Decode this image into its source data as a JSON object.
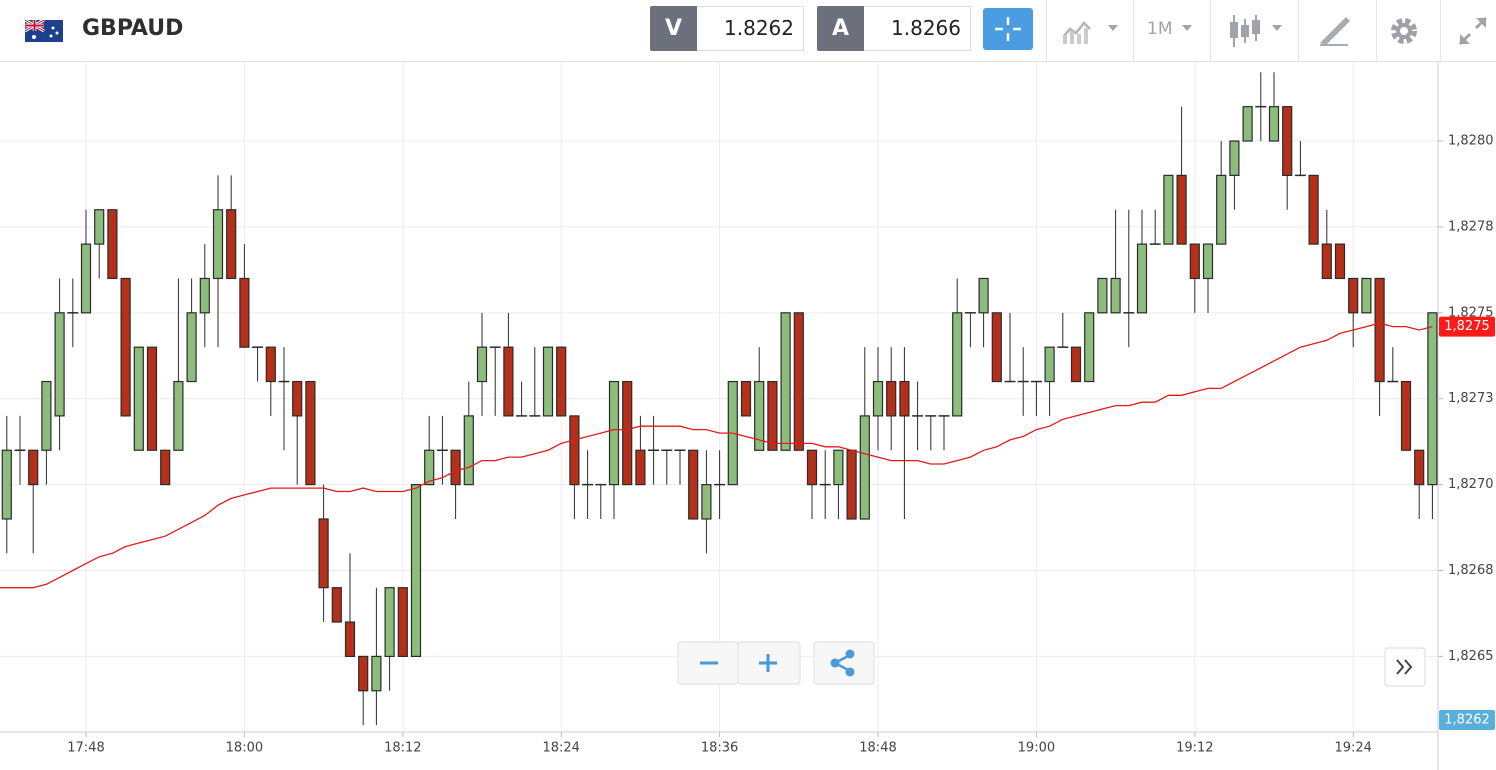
{
  "header": {
    "symbol": "GBPAUD",
    "sell": {
      "label": "V",
      "price": "1.8262"
    },
    "buy": {
      "label": "A",
      "price": "1.8266"
    },
    "timeframe": "1M"
  },
  "chart_data": {
    "type": "candlestick",
    "categories": [
      null,
      null,
      null,
      null,
      null,
      null,
      "17:48",
      null,
      null,
      null,
      null,
      null,
      null,
      null,
      null,
      null,
      null,
      null,
      "18:00",
      null,
      null,
      null,
      null,
      null,
      null,
      null,
      null,
      null,
      null,
      null,
      "18:12",
      null,
      null,
      null,
      null,
      null,
      null,
      null,
      null,
      null,
      null,
      null,
      "18:24",
      null,
      null,
      null,
      null,
      null,
      null,
      null,
      null,
      null,
      null,
      null,
      "18:36",
      null,
      null,
      null,
      null,
      null,
      null,
      null,
      null,
      null,
      null,
      null,
      "18:48",
      null,
      null,
      null,
      null,
      null,
      null,
      null,
      null,
      null,
      null,
      null,
      "19:00",
      null,
      null,
      null,
      null,
      null,
      null,
      null,
      null,
      null,
      null,
      null,
      "19:12",
      null,
      null,
      null,
      null,
      null,
      null,
      null,
      null,
      null,
      null,
      null,
      "19:24",
      null,
      null,
      null,
      null,
      null,
      null
    ],
    "open": [
      1.8269,
      1.8271,
      1.8271,
      1.8271,
      1.8272,
      1.8275,
      1.8275,
      1.8277,
      1.8278,
      1.8276,
      1.8271,
      1.8274,
      1.8271,
      1.8271,
      1.8273,
      1.8275,
      1.8276,
      1.8278,
      1.8276,
      1.8274,
      1.8274,
      1.8273,
      1.8273,
      1.8273,
      1.8269,
      1.8267,
      1.8266,
      1.8265,
      1.8264,
      1.8265,
      1.8267,
      1.8265,
      1.827,
      1.8271,
      1.8271,
      1.827,
      1.8273,
      1.8274,
      1.8274,
      1.8272,
      1.8272,
      1.8272,
      1.8274,
      1.8272,
      1.827,
      1.827,
      1.827,
      1.8273,
      1.8271,
      1.8271,
      1.8271,
      1.8271,
      1.8271,
      1.8269,
      1.827,
      1.827,
      1.8273,
      1.8271,
      1.8273,
      1.8271,
      1.8275,
      1.8271,
      1.827,
      1.827,
      1.8271,
      1.8269,
      1.8272,
      1.8273,
      1.8273,
      1.8272,
      1.8272,
      1.8272,
      1.8272,
      1.8275,
      1.8275,
      1.8275,
      1.8273,
      1.8273,
      1.8273,
      1.8273,
      1.8274,
      1.8274,
      1.8273,
      1.8275,
      1.8275,
      1.8275,
      1.8275,
      1.8277,
      1.8277,
      1.8279,
      1.8277,
      1.8276,
      1.8277,
      1.8279,
      1.828,
      1.8281,
      1.828,
      1.8281,
      1.8279,
      1.8279,
      1.8277,
      1.8277,
      1.8276,
      1.8275,
      1.8276,
      1.8273,
      1.8273,
      1.8271,
      1.827
    ],
    "high": [
      1.8272,
      1.8272,
      1.8271,
      1.8273,
      1.8276,
      1.8276,
      1.8278,
      1.8278,
      1.8278,
      1.8276,
      1.8274,
      1.8274,
      1.8271,
      1.8276,
      1.8276,
      1.8277,
      1.8279,
      1.8279,
      1.8277,
      1.8274,
      1.8274,
      1.8274,
      1.8273,
      1.8273,
      1.827,
      1.8267,
      1.8268,
      1.8265,
      1.8267,
      1.8267,
      1.8267,
      1.827,
      1.8272,
      1.8272,
      1.8271,
      1.8273,
      1.8275,
      1.8274,
      1.8275,
      1.8273,
      1.8274,
      1.8274,
      1.8274,
      1.8272,
      1.8271,
      1.827,
      1.8273,
      1.8273,
      1.8272,
      1.8272,
      1.8271,
      1.8271,
      1.8271,
      1.8271,
      1.8271,
      1.8273,
      1.8273,
      1.8274,
      1.8273,
      1.8275,
      1.8275,
      1.8271,
      1.8271,
      1.8271,
      1.8271,
      1.8274,
      1.8274,
      1.8274,
      1.8274,
      1.8273,
      1.8272,
      1.8272,
      1.8276,
      1.8275,
      1.8276,
      1.8275,
      1.8275,
      1.8274,
      1.8273,
      1.8274,
      1.8275,
      1.8274,
      1.8275,
      1.8276,
      1.8278,
      1.8278,
      1.8278,
      1.8278,
      1.8279,
      1.8281,
      1.8277,
      1.8277,
      1.828,
      1.828,
      1.8281,
      1.8282,
      1.8282,
      1.8281,
      1.828,
      1.8279,
      1.8278,
      1.8277,
      1.8276,
      1.8276,
      1.8276,
      1.8274,
      1.8273,
      1.8271,
      1.8275
    ],
    "low": [
      1.8268,
      1.827,
      1.8268,
      1.827,
      1.8271,
      1.8274,
      1.8275,
      1.8276,
      1.8276,
      1.8272,
      1.8271,
      1.8271,
      1.827,
      1.8271,
      1.8273,
      1.8274,
      1.8274,
      1.8276,
      1.8274,
      1.8273,
      1.8272,
      1.8271,
      1.827,
      1.827,
      1.8266,
      1.8266,
      1.8265,
      1.8263,
      1.8263,
      1.8264,
      1.8265,
      1.8265,
      1.827,
      1.827,
      1.8269,
      1.827,
      1.8272,
      1.8272,
      1.8272,
      1.8272,
      1.8272,
      1.8272,
      1.8272,
      1.8269,
      1.8269,
      1.8269,
      1.8269,
      1.827,
      1.827,
      1.827,
      1.827,
      1.827,
      1.8269,
      1.8268,
      1.8269,
      1.827,
      1.8272,
      1.8271,
      1.8271,
      1.8271,
      1.8271,
      1.8269,
      1.8269,
      1.8269,
      1.8269,
      1.8269,
      1.8271,
      1.8271,
      1.8269,
      1.8271,
      1.8271,
      1.8271,
      1.8272,
      1.8274,
      1.8274,
      1.8273,
      1.8273,
      1.8272,
      1.8272,
      1.8272,
      1.8274,
      1.8273,
      1.8273,
      1.8275,
      1.8275,
      1.8274,
      1.8275,
      1.8277,
      1.8277,
      1.8277,
      1.8275,
      1.8275,
      1.8277,
      1.8278,
      1.828,
      1.828,
      1.828,
      1.8278,
      1.8279,
      1.8277,
      1.8276,
      1.8276,
      1.8274,
      1.8275,
      1.8272,
      1.8273,
      1.8271,
      1.8269,
      1.8269
    ],
    "close": [
      1.8271,
      1.8271,
      1.827,
      1.8273,
      1.8275,
      1.8275,
      1.8277,
      1.8278,
      1.8276,
      1.8272,
      1.8274,
      1.8271,
      1.827,
      1.8273,
      1.8275,
      1.8276,
      1.8278,
      1.8276,
      1.8274,
      1.8274,
      1.8273,
      1.8273,
      1.8272,
      1.827,
      1.8267,
      1.8266,
      1.8265,
      1.8264,
      1.8265,
      1.8267,
      1.8265,
      1.827,
      1.8271,
      1.8271,
      1.827,
      1.8272,
      1.8274,
      1.8274,
      1.8272,
      1.8272,
      1.8272,
      1.8274,
      1.8272,
      1.827,
      1.827,
      1.827,
      1.8273,
      1.827,
      1.827,
      1.8271,
      1.8271,
      1.8271,
      1.8269,
      1.827,
      1.827,
      1.8273,
      1.8272,
      1.8273,
      1.8271,
      1.8275,
      1.8271,
      1.827,
      1.827,
      1.8271,
      1.8269,
      1.8272,
      1.8273,
      1.8272,
      1.8272,
      1.8272,
      1.8272,
      1.8272,
      1.8275,
      1.8275,
      1.8276,
      1.8273,
      1.8273,
      1.8273,
      1.8273,
      1.8274,
      1.8274,
      1.8273,
      1.8275,
      1.8276,
      1.8276,
      1.8275,
      1.8277,
      1.8277,
      1.8279,
      1.8277,
      1.8276,
      1.8277,
      1.8279,
      1.828,
      1.8281,
      1.8281,
      1.8281,
      1.8279,
      1.8279,
      1.8277,
      1.8276,
      1.8276,
      1.8275,
      1.8276,
      1.8273,
      1.8273,
      1.8271,
      1.827,
      1.8275
    ],
    "up_color": "#8dbd7c",
    "down_color": "#b5301a",
    "outline_color": "#2b2b2b",
    "ma": {
      "color": "#e01b1b",
      "values": [
        1.8267,
        1.8267,
        1.8267,
        1.82671,
        1.82673,
        1.82675,
        1.82677,
        1.82679,
        1.8268,
        1.82682,
        1.82683,
        1.82684,
        1.82685,
        1.82687,
        1.82689,
        1.82691,
        1.82694,
        1.82696,
        1.82697,
        1.82698,
        1.82699,
        1.82699,
        1.82699,
        1.82699,
        1.82699,
        1.82698,
        1.82698,
        1.82699,
        1.82698,
        1.82698,
        1.82698,
        1.82699,
        1.82701,
        1.82702,
        1.82704,
        1.82705,
        1.82707,
        1.82707,
        1.82708,
        1.82708,
        1.82709,
        1.8271,
        1.82712,
        1.82713,
        1.82714,
        1.82715,
        1.82716,
        1.82716,
        1.82717,
        1.82717,
        1.82717,
        1.82717,
        1.82716,
        1.82716,
        1.82715,
        1.82715,
        1.82714,
        1.82713,
        1.82712,
        1.82712,
        1.82712,
        1.82712,
        1.82711,
        1.82711,
        1.8271,
        1.82709,
        1.82708,
        1.82707,
        1.82707,
        1.82707,
        1.82706,
        1.82706,
        1.82707,
        1.82708,
        1.8271,
        1.82711,
        1.82713,
        1.82714,
        1.82716,
        1.82717,
        1.82719,
        1.8272,
        1.82721,
        1.82722,
        1.82723,
        1.82723,
        1.82724,
        1.82724,
        1.82726,
        1.82726,
        1.82727,
        1.82728,
        1.82728,
        1.8273,
        1.82732,
        1.82734,
        1.82736,
        1.82738,
        1.8274,
        1.82741,
        1.82742,
        1.82744,
        1.82745,
        1.82746,
        1.82747,
        1.82746,
        1.82746,
        1.82745,
        1.82746
      ]
    },
    "ylim": [
      1.82628,
      1.82823
    ],
    "yticks": [
      {
        "value": 1.8265,
        "label": "1,8265"
      },
      {
        "value": 1.82675,
        "label": "1,8268"
      },
      {
        "value": 1.827,
        "label": "1,8270"
      },
      {
        "value": 1.82725,
        "label": "1,8273"
      },
      {
        "value": 1.8275,
        "label": "1,8275"
      },
      {
        "value": 1.82775,
        "label": "1,8278"
      },
      {
        "value": 1.828,
        "label": "1,8280"
      }
    ],
    "grid": true,
    "price_tag": {
      "value": 1.82746,
      "label": "1,8275",
      "color": "#ff1a1a"
    },
    "bid_tag": {
      "label": "1,8262",
      "color": "#5aaedb"
    }
  }
}
